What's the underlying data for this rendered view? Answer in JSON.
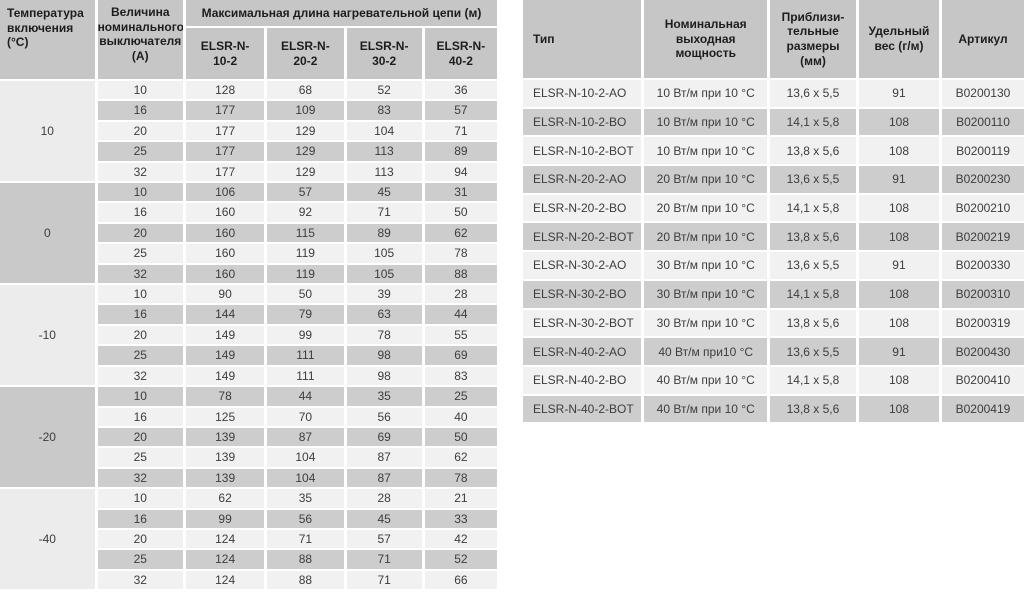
{
  "left_table": {
    "header": {
      "temperature_col": "Температура включения (°C)",
      "breaker_col": "Величина номинального выключателя (А)",
      "title": "Максимальная длина нагревательной цепи (м)",
      "products": [
        "ELSR-N-\n10-2",
        "ELSR-N-\n20-2",
        "ELSR-N-\n30-2",
        "ELSR-N-\n40-2"
      ]
    },
    "groups": [
      {
        "temperature": "10",
        "rows": [
          [
            10,
            128,
            68,
            52,
            36
          ],
          [
            16,
            177,
            109,
            83,
            57
          ],
          [
            20,
            177,
            129,
            104,
            71
          ],
          [
            25,
            177,
            129,
            113,
            89
          ],
          [
            32,
            177,
            129,
            113,
            94
          ]
        ]
      },
      {
        "temperature": "0",
        "rows": [
          [
            10,
            106,
            57,
            45,
            31
          ],
          [
            16,
            160,
            92,
            71,
            50
          ],
          [
            20,
            160,
            115,
            89,
            62
          ],
          [
            25,
            160,
            119,
            105,
            78
          ],
          [
            32,
            160,
            119,
            105,
            88
          ]
        ]
      },
      {
        "temperature": "-10",
        "rows": [
          [
            10,
            90,
            50,
            39,
            28
          ],
          [
            16,
            144,
            79,
            63,
            44
          ],
          [
            20,
            149,
            99,
            78,
            55
          ],
          [
            25,
            149,
            111,
            98,
            69
          ],
          [
            32,
            149,
            111,
            98,
            83
          ]
        ]
      },
      {
        "temperature": "-20",
        "rows": [
          [
            10,
            78,
            44,
            35,
            25
          ],
          [
            16,
            125,
            70,
            56,
            40
          ],
          [
            20,
            139,
            87,
            69,
            50
          ],
          [
            25,
            139,
            104,
            87,
            62
          ],
          [
            32,
            139,
            104,
            87,
            78
          ]
        ]
      },
      {
        "temperature": "-40",
        "rows": [
          [
            10,
            62,
            35,
            28,
            21
          ],
          [
            16,
            99,
            56,
            45,
            33
          ],
          [
            20,
            124,
            71,
            57,
            42
          ],
          [
            25,
            124,
            88,
            71,
            52
          ],
          [
            32,
            124,
            88,
            71,
            66
          ]
        ]
      }
    ]
  },
  "right_table": {
    "header": [
      "Тип",
      "Номинальная выходная мощность",
      "Приблизи-\nтельные\nразмеры\n(мм)",
      "Удельный вес (г/м)",
      "Артикул"
    ],
    "rows": [
      [
        "ELSR-N-10-2-AO",
        "10 Вт/м при 10 °C",
        "13,6 x 5,5",
        "91",
        "B0200130"
      ],
      [
        "ELSR-N-10-2-BO",
        "10 Вт/м при 10 °C",
        "14,1 x 5,8",
        "108",
        "B0200110"
      ],
      [
        "ELSR-N-10-2-BOT",
        "10 Вт/м при 10 °C",
        "13,8 x 5,6",
        "108",
        "B0200119"
      ],
      [
        "ELSR-N-20-2-AO",
        "20 Вт/м при 10 °C",
        "13,6 x 5,5",
        "91",
        "B0200230"
      ],
      [
        "ELSR-N-20-2-BO",
        "20 Вт/м при 10 °C",
        "14,1 x 5,8",
        "108",
        "B0200210"
      ],
      [
        "ELSR-N-20-2-BOT",
        "20 Вт/м при 10 °C",
        "13,8 x 5,6",
        "108",
        "B0200219"
      ],
      [
        "ELSR-N-30-2-AO",
        "30 Вт/м при 10 °C",
        "13,6 x 5,5",
        "91",
        "B0200330"
      ],
      [
        "ELSR-N-30-2-BO",
        "30 Вт/м при 10 °C",
        "14,1 x 5,8",
        "108",
        "B0200310"
      ],
      [
        "ELSR-N-30-2-BOT",
        "30 Вт/м при 10 °C",
        "13,8 x 5,6",
        "108",
        "B0200319"
      ],
      [
        "ELSR-N-40-2-AO",
        "40 Вт/м при10 °C",
        "13,6 x 5,5",
        "91",
        "B0200430"
      ],
      [
        "ELSR-N-40-2-BO",
        "40 Вт/м при 10 °C",
        "14,1 x 5,8",
        "108",
        "B0200410"
      ],
      [
        "ELSR-N-40-2-BOT",
        "40 Вт/м при 10 °C",
        "13,8 x 5,6",
        "108",
        "B0200419"
      ]
    ]
  }
}
